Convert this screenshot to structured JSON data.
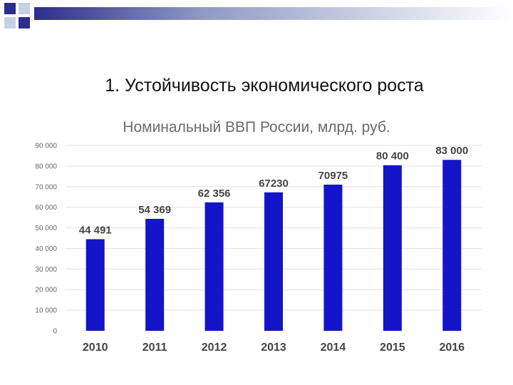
{
  "slide": {
    "title": "1. Устойчивость экономического роста"
  },
  "colors": {
    "bar": "#1414c8",
    "value_label": "#444444",
    "tick_label": "#666666",
    "grid": "#e2e2e2",
    "deco_blue": "#2d2d8c",
    "deco_light": "#c8d0e4"
  },
  "chart_data": {
    "type": "bar",
    "title": "Номинальный ВВП России, млрд. руб.",
    "categories": [
      "2010",
      "2011",
      "2012",
      "2013",
      "2014",
      "2015",
      "2016"
    ],
    "values": [
      44491,
      54369,
      62356,
      67230,
      70975,
      80400,
      83000
    ],
    "data_labels": [
      "44 491",
      "54 369",
      "62 356",
      "67230",
      "70975",
      "80 400",
      "83 000"
    ],
    "ylim": [
      0,
      90000
    ],
    "yticks": [
      0,
      10000,
      20000,
      30000,
      40000,
      50000,
      60000,
      70000,
      80000,
      90000
    ],
    "ytick_labels": [
      "0",
      "10 000",
      "20 000",
      "30 000",
      "40 000",
      "50 000",
      "60 000",
      "70 000",
      "80 000",
      "90 000"
    ],
    "grid": true,
    "legend": "none"
  }
}
